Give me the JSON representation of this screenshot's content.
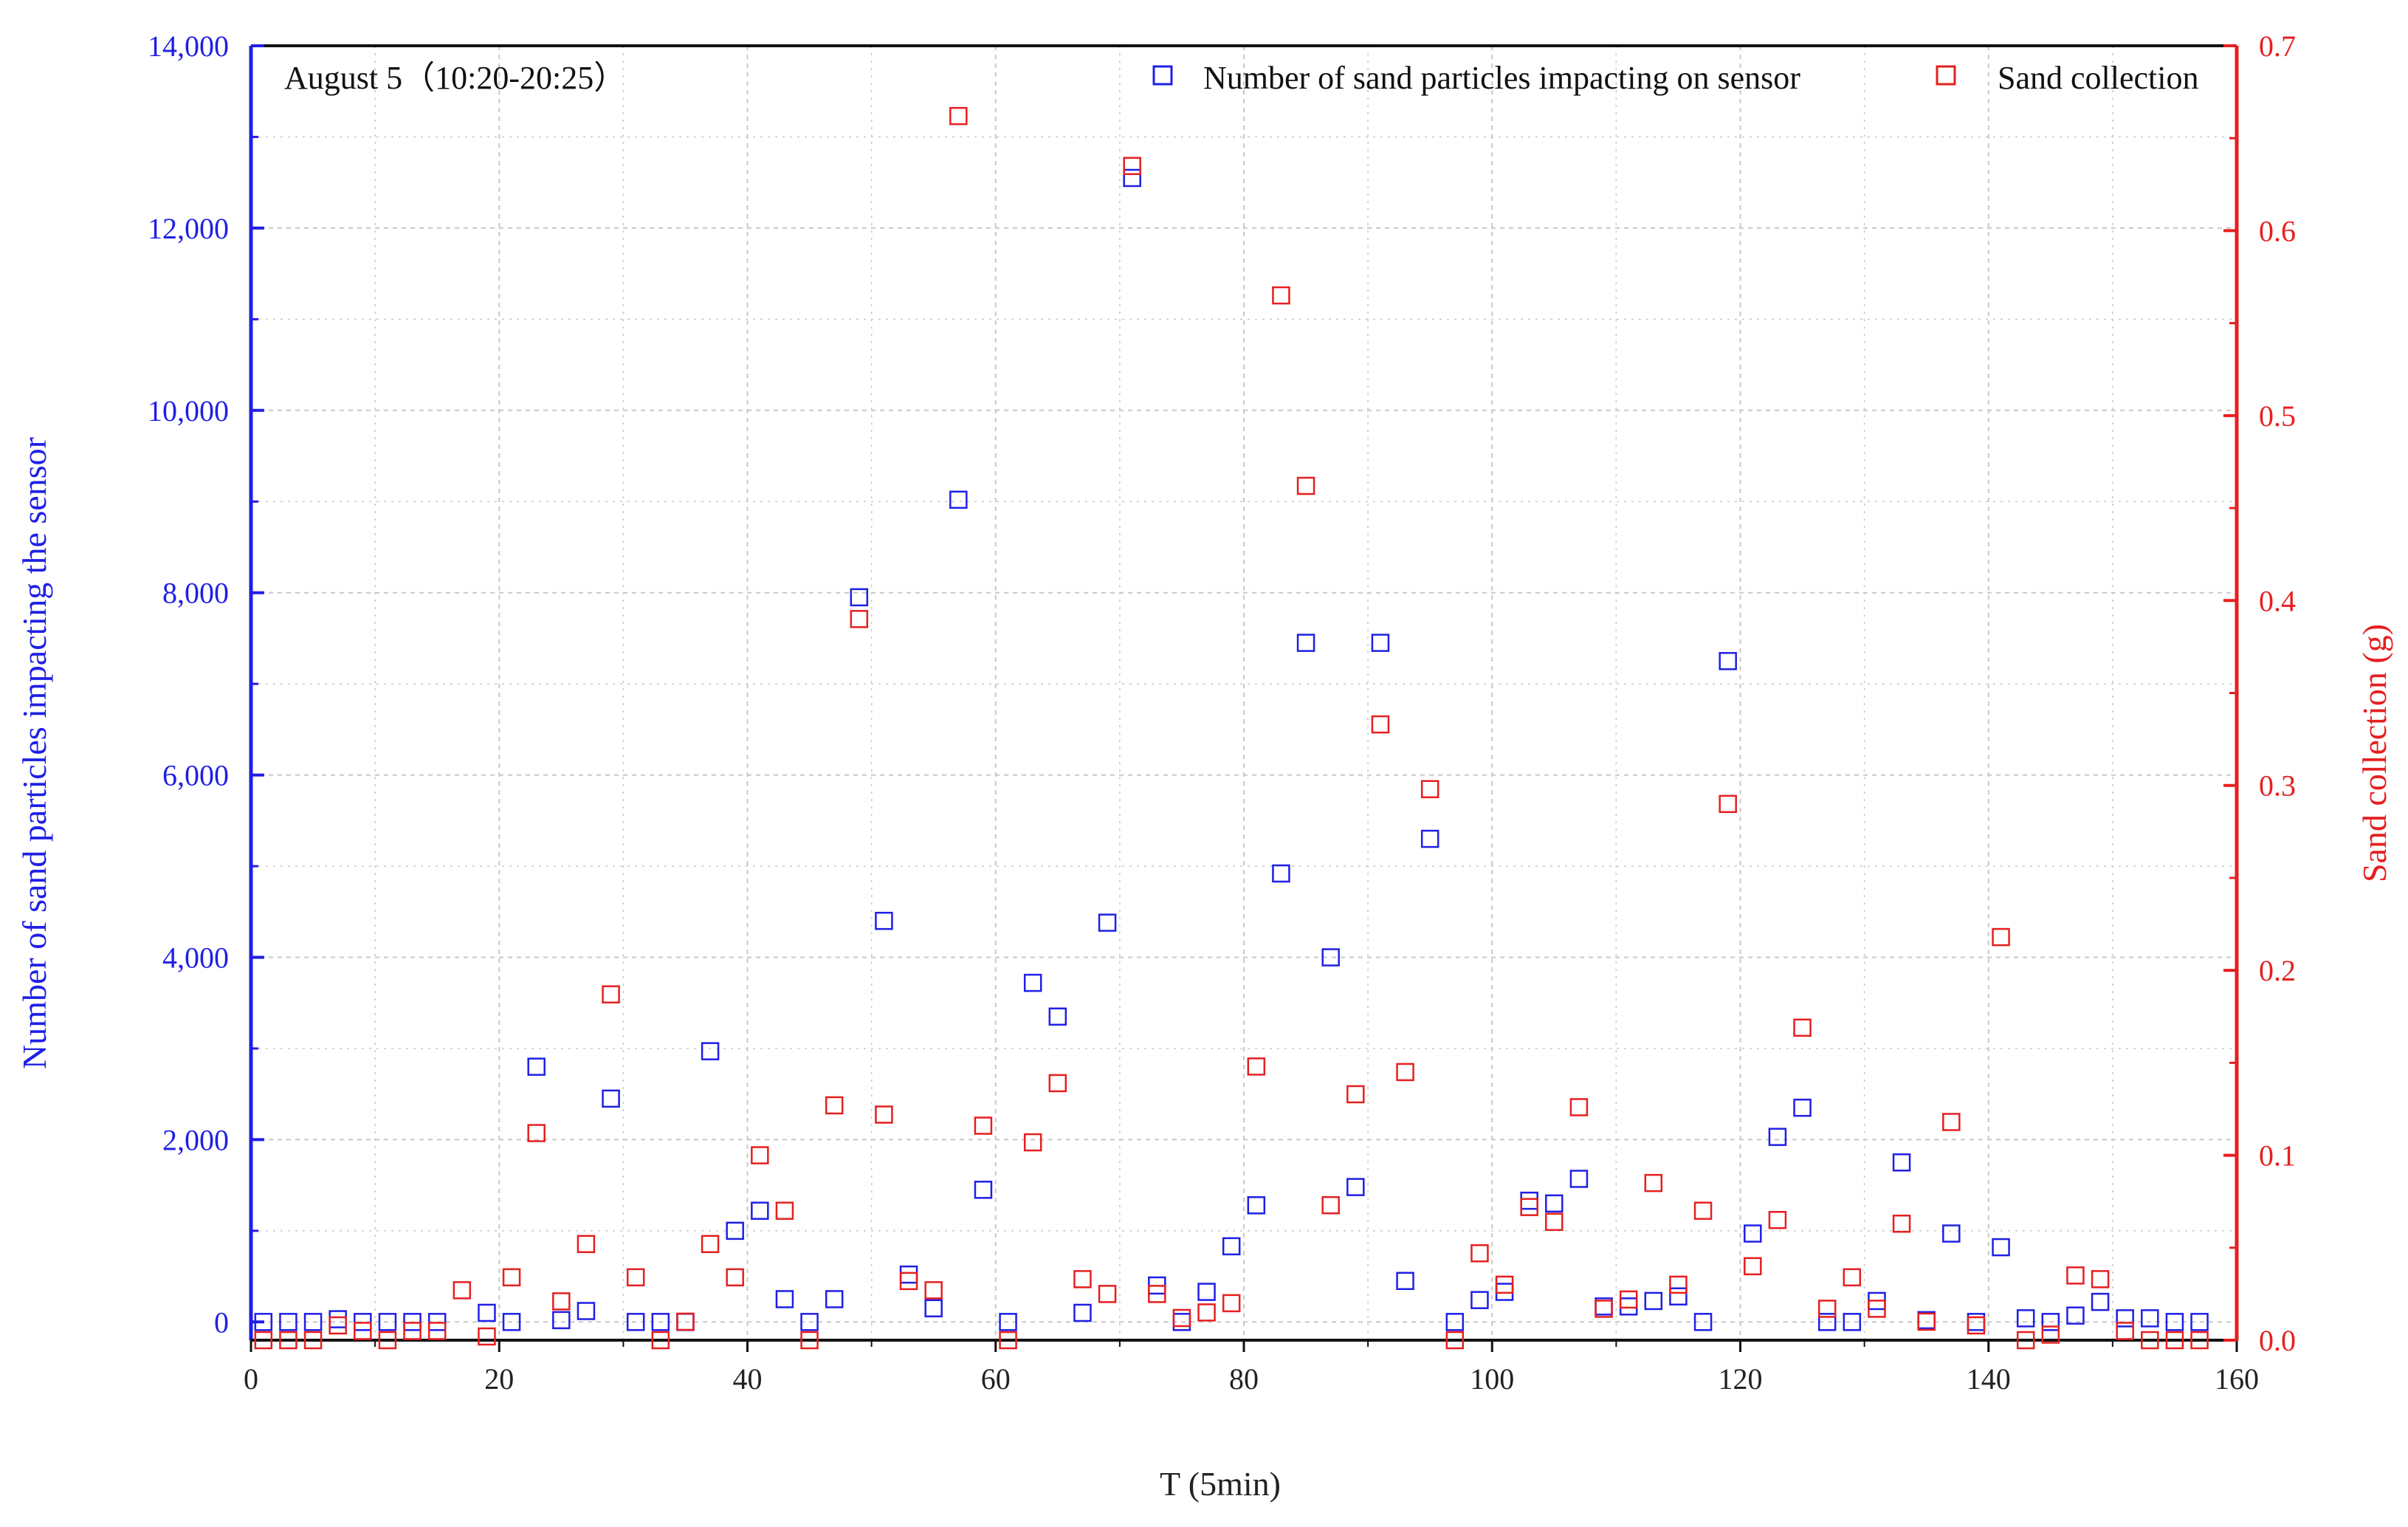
{
  "chart_data": {
    "type": "scatter",
    "annotation": "August 5（10:20-20:25）",
    "xlabel": "T (5min)",
    "ylabel_left": "Number of  sand particles impacting the sensor",
    "ylabel_right": "Sand collection (g)",
    "xlim": [
      0,
      160
    ],
    "ylim_left": [
      -200,
      14000
    ],
    "ylim_right": [
      0,
      0.7
    ],
    "x_ticks": [
      "0",
      "20",
      "40",
      "60",
      "80",
      "100",
      "120",
      "140",
      "160"
    ],
    "y_left_ticks": [
      "0",
      "2,000",
      "4,000",
      "6,000",
      "8,000",
      "10,000",
      "12,000",
      "14,000"
    ],
    "y_right_ticks": [
      "0.0",
      "0.1",
      "0.2",
      "0.3",
      "0.4",
      "0.5",
      "0.6",
      "0.7"
    ],
    "grid": true,
    "legend_position": "top-right",
    "colors": {
      "left_axis": "#1f1fe6",
      "right_axis": "#e61f1f",
      "grid": "#c8c8c8"
    },
    "series": [
      {
        "name": "Number of  sand particles impacting on sensor",
        "axis": "left",
        "color": "#1f1fe6",
        "marker": "open-square",
        "points": [
          [
            1,
            0
          ],
          [
            3,
            0
          ],
          [
            5,
            0
          ],
          [
            7,
            30
          ],
          [
            9,
            0
          ],
          [
            11,
            0
          ],
          [
            13,
            0
          ],
          [
            15,
            0
          ],
          [
            19,
            100
          ],
          [
            21,
            0
          ],
          [
            23,
            2800
          ],
          [
            25,
            20
          ],
          [
            27,
            120
          ],
          [
            29,
            2450
          ],
          [
            31,
            0
          ],
          [
            33,
            0
          ],
          [
            35,
            0
          ],
          [
            37,
            2970
          ],
          [
            39,
            1000
          ],
          [
            41,
            1220
          ],
          [
            43,
            250
          ],
          [
            45,
            0
          ],
          [
            47,
            250
          ],
          [
            49,
            7950
          ],
          [
            51,
            4400
          ],
          [
            53,
            520
          ],
          [
            55,
            150
          ],
          [
            57,
            9020
          ],
          [
            59,
            1450
          ],
          [
            61,
            0
          ],
          [
            63,
            3720
          ],
          [
            65,
            3350
          ],
          [
            67,
            100
          ],
          [
            69,
            4380
          ],
          [
            71,
            12550
          ],
          [
            73,
            400
          ],
          [
            75,
            0
          ],
          [
            77,
            330
          ],
          [
            79,
            830
          ],
          [
            81,
            1280
          ],
          [
            83,
            4920
          ],
          [
            85,
            7450
          ],
          [
            87,
            4000
          ],
          [
            89,
            1480
          ],
          [
            91,
            7450
          ],
          [
            93,
            450
          ],
          [
            95,
            5300
          ],
          [
            97,
            0
          ],
          [
            99,
            240
          ],
          [
            101,
            330
          ],
          [
            103,
            1330
          ],
          [
            105,
            1300
          ],
          [
            107,
            1570
          ],
          [
            109,
            170
          ],
          [
            111,
            170
          ],
          [
            113,
            230
          ],
          [
            115,
            280
          ],
          [
            117,
            0
          ],
          [
            119,
            7250
          ],
          [
            121,
            970
          ],
          [
            123,
            2030
          ],
          [
            125,
            2350
          ],
          [
            127,
            0
          ],
          [
            129,
            0
          ],
          [
            131,
            230
          ],
          [
            133,
            1750
          ],
          [
            135,
            20
          ],
          [
            137,
            970
          ],
          [
            139,
            0
          ],
          [
            141,
            820
          ],
          [
            143,
            40
          ],
          [
            145,
            0
          ],
          [
            147,
            70
          ],
          [
            149,
            220
          ],
          [
            151,
            40
          ],
          [
            153,
            40
          ],
          [
            155,
            0
          ],
          [
            157,
            0
          ]
        ]
      },
      {
        "name": "Sand collection",
        "axis": "right",
        "color": "#e61f1f",
        "marker": "open-square",
        "points": [
          [
            1,
            0
          ],
          [
            3,
            0
          ],
          [
            5,
            0
          ],
          [
            7,
            0.008
          ],
          [
            9,
            0.005
          ],
          [
            11,
            0
          ],
          [
            13,
            0.005
          ],
          [
            15,
            0.005
          ],
          [
            17,
            0.027
          ],
          [
            19,
            0.002
          ],
          [
            21,
            0.034
          ],
          [
            23,
            0.112
          ],
          [
            25,
            0.021
          ],
          [
            27,
            0.052
          ],
          [
            29,
            0.187
          ],
          [
            31,
            0.034
          ],
          [
            33,
            0
          ],
          [
            35,
            0.01
          ],
          [
            37,
            0.052
          ],
          [
            39,
            0.034
          ],
          [
            41,
            0.1
          ],
          [
            43,
            0.07
          ],
          [
            45,
            0
          ],
          [
            47,
            0.127
          ],
          [
            49,
            0.39
          ],
          [
            51,
            0.122
          ],
          [
            53,
            0.032
          ],
          [
            55,
            0.027
          ],
          [
            57,
            0.662
          ],
          [
            59,
            0.116
          ],
          [
            61,
            0
          ],
          [
            63,
            0.107
          ],
          [
            65,
            0.139
          ],
          [
            67,
            0.033
          ],
          [
            69,
            0.025
          ],
          [
            71,
            0.635
          ],
          [
            73,
            0.025
          ],
          [
            75,
            0.012
          ],
          [
            77,
            0.015
          ],
          [
            79,
            0.02
          ],
          [
            81,
            0.148
          ],
          [
            83,
            0.565
          ],
          [
            85,
            0.462
          ],
          [
            87,
            0.073
          ],
          [
            89,
            0.133
          ],
          [
            91,
            0.333
          ],
          [
            93,
            0.145
          ],
          [
            95,
            0.298
          ],
          [
            97,
            0
          ],
          [
            99,
            0.047
          ],
          [
            101,
            0.03
          ],
          [
            103,
            0.072
          ],
          [
            105,
            0.064
          ],
          [
            107,
            0.126
          ],
          [
            109,
            0.017
          ],
          [
            111,
            0.022
          ],
          [
            113,
            0.085
          ],
          [
            115,
            0.03
          ],
          [
            117,
            0.07
          ],
          [
            119,
            0.29
          ],
          [
            121,
            0.04
          ],
          [
            123,
            0.065
          ],
          [
            125,
            0.169
          ],
          [
            127,
            0.017
          ],
          [
            129,
            0.034
          ],
          [
            131,
            0.017
          ],
          [
            133,
            0.063
          ],
          [
            135,
            0.01
          ],
          [
            137,
            0.118
          ],
          [
            139,
            0.008
          ],
          [
            141,
            0.218
          ],
          [
            143,
            0
          ],
          [
            145,
            0.003
          ],
          [
            147,
            0.035
          ],
          [
            149,
            0.033
          ],
          [
            151,
            0.005
          ],
          [
            153,
            0
          ],
          [
            155,
            0
          ],
          [
            157,
            0
          ]
        ]
      }
    ]
  }
}
